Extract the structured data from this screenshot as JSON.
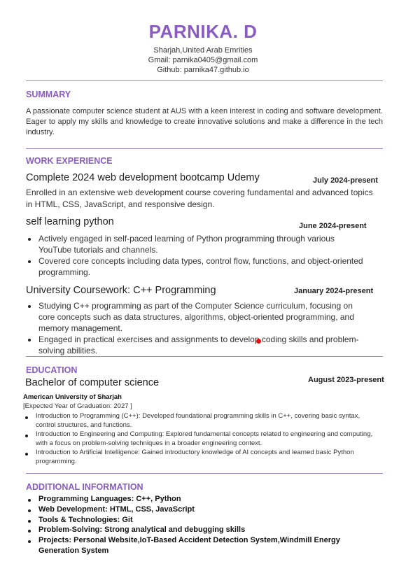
{
  "header": {
    "name": "PARNIKA. D",
    "location": "Sharjah,United Arab Emrities",
    "gmail": "Gmail: parnika0405@gmail.com",
    "github": "Github: parnika47.github.io"
  },
  "summary": {
    "title": "SUMMARY",
    "text": "A passionate computer science student at AUS with a keen interest in coding and software development. Eager to apply my skills and knowledge to create innovative solutions and make a difference in the tech industry."
  },
  "experience": {
    "title": "WORK EXPERIENCE",
    "jobs": [
      {
        "title": "Complete 2024 web development bootcamp Udemy",
        "date": "July 2024-present",
        "desc": "Enrolled in an extensive web development course covering fundamental and advanced topics in HTML, CSS, JavaScript, and responsive design."
      },
      {
        "title": "self learning python",
        "date": "June 2024-present",
        "bullets": [
          "Actively engaged in self-paced learning of Python programming through various YouTube tutorials and channels.",
          "Covered core concepts including data types, control flow, functions, and object-oriented programming."
        ]
      },
      {
        "title": "University Coursework: C++ Programming",
        "date": "January 2024-present",
        "bullets": [
          "Studying C++ programming as part of the Computer Science curriculum, focusing on core concepts such as data structures, algorithms, object-oriented programming, and memory management.",
          "Engaged in practical exercises and assignments to develop coding skills and problem-solving abilities."
        ]
      }
    ]
  },
  "education": {
    "title": "EDUCATION",
    "degree": "Bachelor of computer science",
    "date": "August 2023-present",
    "school": "American University of Sharjah",
    "expected": "[Expected Year of Graduation: 2027 ]",
    "courses": [
      "Introduction to Programming (C++): Developed foundational programming skills in C++, covering basic syntax, control structures, and functions.",
      "Introduction to Engineering and Computing: Explored fundamental concepts related to engineering and computing, with a focus on problem-solving techniques in a broader engineering context.",
      "Introduction to Artificial Intelligence: Gained introductory knowledge of AI concepts and learned basic Python programming."
    ]
  },
  "additional": {
    "title": "ADDITIONAL INFORMATION",
    "items": [
      "Programming Languages: C++, Python",
      "Web Development: HTML, CSS, JavaScript",
      "Tools & Technologies: Git",
      "Problem-Solving: Strong analytical and debugging skills",
      "Projects: Personal Website,IoT-Based Accident Detection System,Windmill Energy Generation System"
    ]
  },
  "colors": {
    "accent": "#8a5cc2",
    "rule": "#9b86c9",
    "marker": "#e11111"
  }
}
